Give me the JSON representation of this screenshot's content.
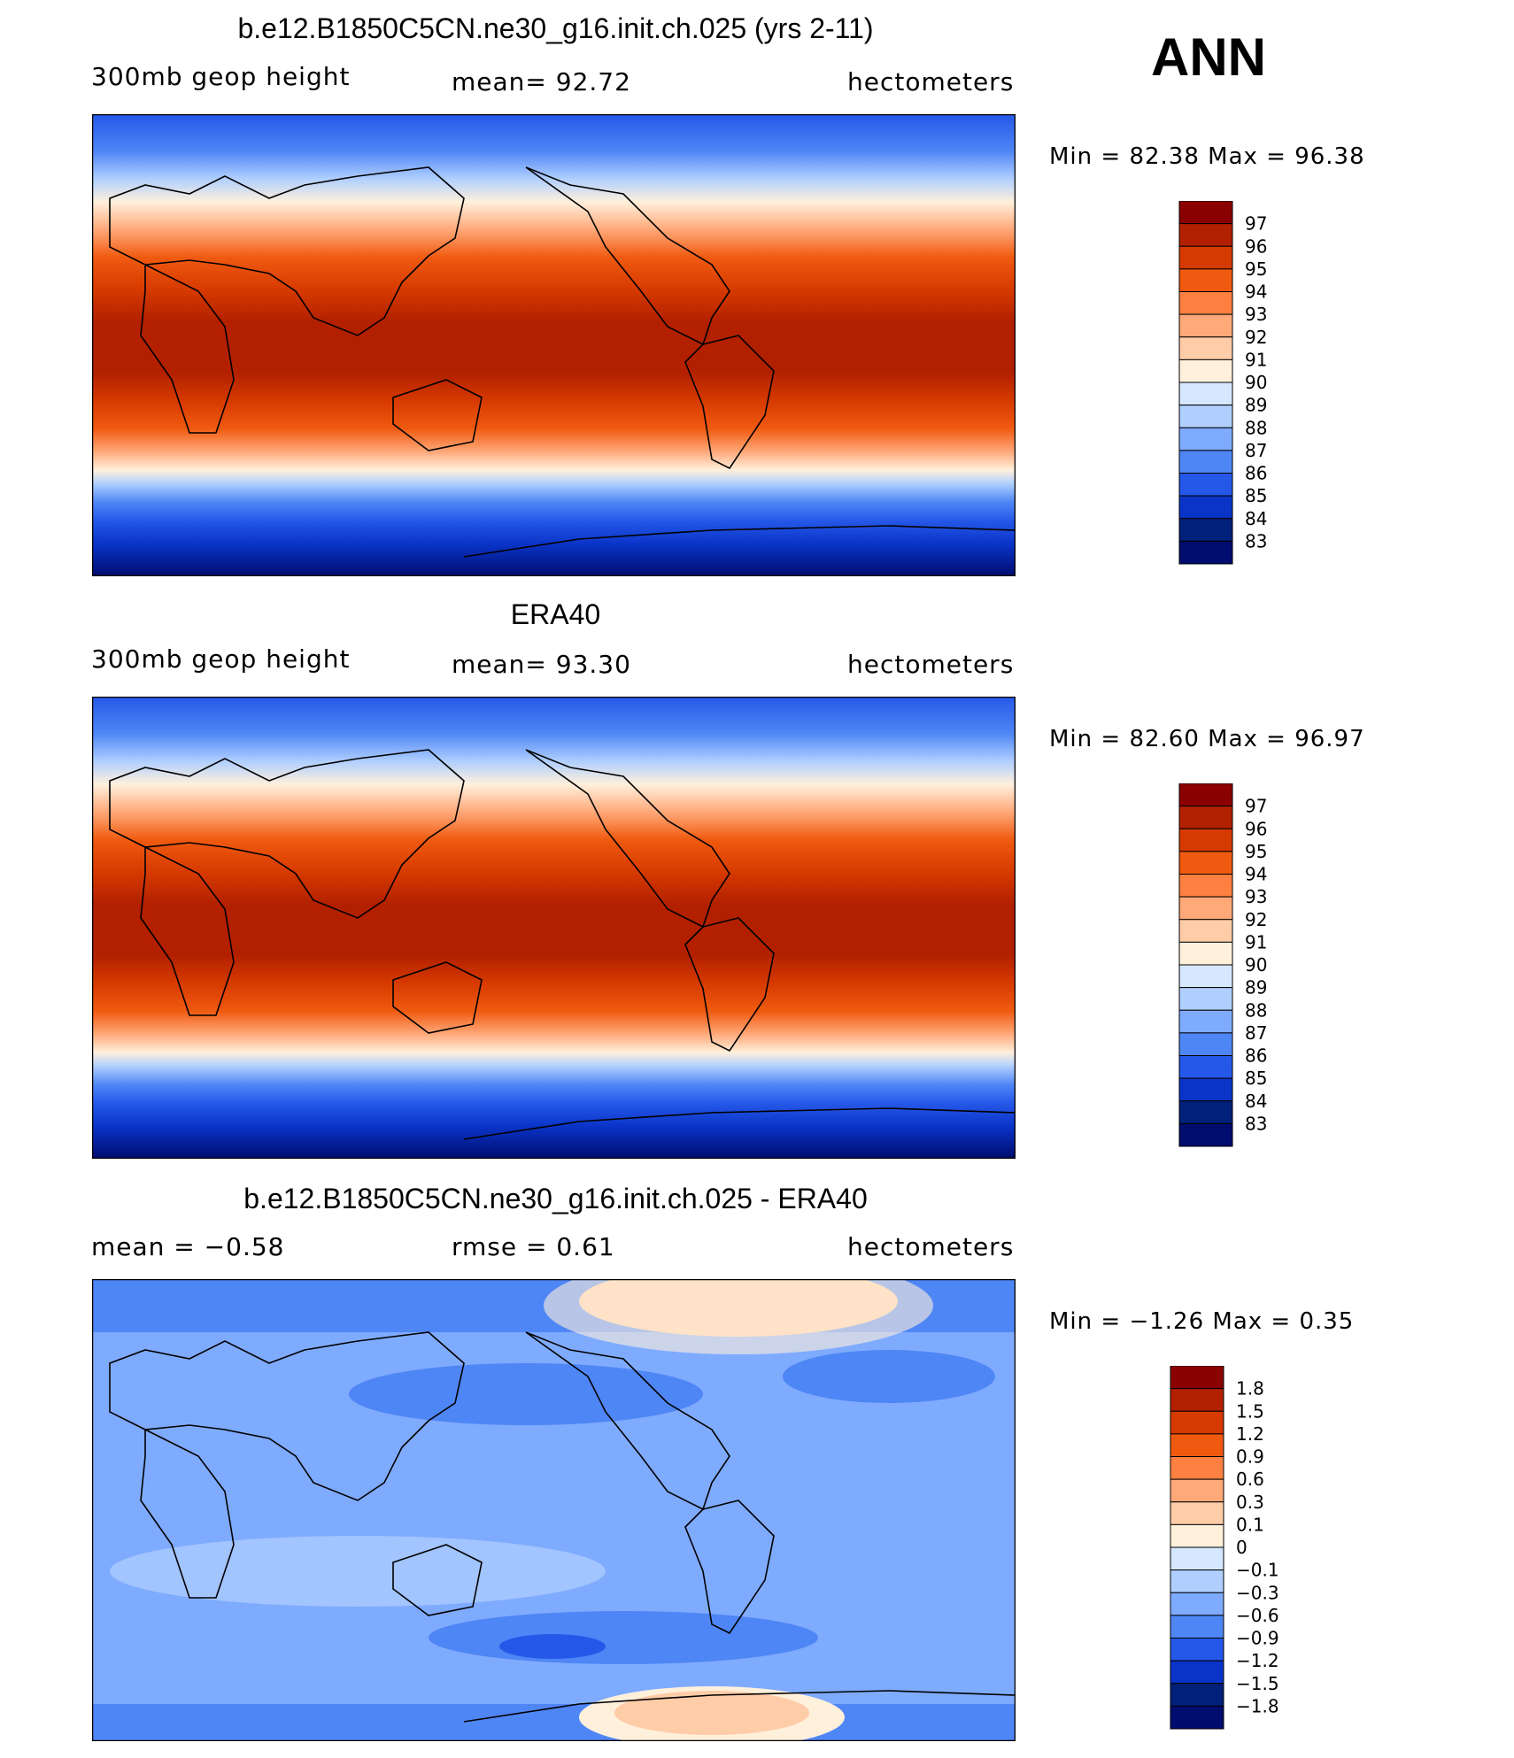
{
  "season": "ANN",
  "chart_data": [
    {
      "type": "heatmap",
      "title": "b.e12.B1850C5CN.ne30_g16.init.ch.025 (yrs 2-11)",
      "left_label": "300mb geop height",
      "center_label": "mean=  92.72",
      "right_label": "hectometers",
      "minmax": "Min =   82.38 Max =   96.38",
      "min": 82.38,
      "max": 96.38,
      "mean": 92.72,
      "units": "hectometers",
      "colorbar_levels": [
        "97",
        "96",
        "95",
        "94",
        "93",
        "92",
        "91",
        "90",
        "89",
        "88",
        "87",
        "86",
        "85",
        "84",
        "83"
      ],
      "colorbar_colors": [
        "#8b0000",
        "#b22000",
        "#d63a00",
        "#f05a10",
        "#ff8040",
        "#ffa878",
        "#ffcca8",
        "#fff0dc",
        "#d6e8ff",
        "#b0cfff",
        "#7fabff",
        "#4f86f5",
        "#2558e8",
        "#0a34c8",
        "#00207a",
        "#000c6e"
      ]
    },
    {
      "type": "heatmap",
      "title": "ERA40",
      "left_label": "300mb geop height",
      "center_label": "mean=  93.30",
      "right_label": "hectometers",
      "minmax": "Min =   82.60 Max =   96.97",
      "min": 82.6,
      "max": 96.97,
      "mean": 93.3,
      "units": "hectometers",
      "colorbar_levels": [
        "97",
        "96",
        "95",
        "94",
        "93",
        "92",
        "91",
        "90",
        "89",
        "88",
        "87",
        "86",
        "85",
        "84",
        "83"
      ],
      "colorbar_colors": [
        "#8b0000",
        "#b22000",
        "#d63a00",
        "#f05a10",
        "#ff8040",
        "#ffa878",
        "#ffcca8",
        "#fff0dc",
        "#d6e8ff",
        "#b0cfff",
        "#7fabff",
        "#4f86f5",
        "#2558e8",
        "#0a34c8",
        "#00207a",
        "#000c6e"
      ]
    },
    {
      "type": "heatmap",
      "title": "b.e12.B1850C5CN.ne30_g16.init.ch.025 - ERA40",
      "left_label": "mean =   −0.58",
      "center_label": "rmse =    0.61",
      "right_label": "hectometers",
      "minmax": "Min =  −1.26 Max =    0.35",
      "min": -1.26,
      "max": 0.35,
      "mean": -0.58,
      "rmse": 0.61,
      "units": "hectometers",
      "colorbar_levels": [
        "1.8",
        "1.5",
        "1.2",
        "0.9",
        "0.6",
        "0.3",
        "0.1",
        "0",
        "−0.1",
        "−0.3",
        "−0.6",
        "−0.9",
        "−1.2",
        "−1.5",
        "−1.8"
      ],
      "colorbar_colors": [
        "#8b0000",
        "#b22000",
        "#d63a00",
        "#f05a10",
        "#ff8040",
        "#ffa878",
        "#ffcca8",
        "#fff0dc",
        "#d6e8ff",
        "#b0cfff",
        "#7fabff",
        "#4f86f5",
        "#2558e8",
        "#0a34c8",
        "#00207a",
        "#000c6e"
      ]
    }
  ]
}
